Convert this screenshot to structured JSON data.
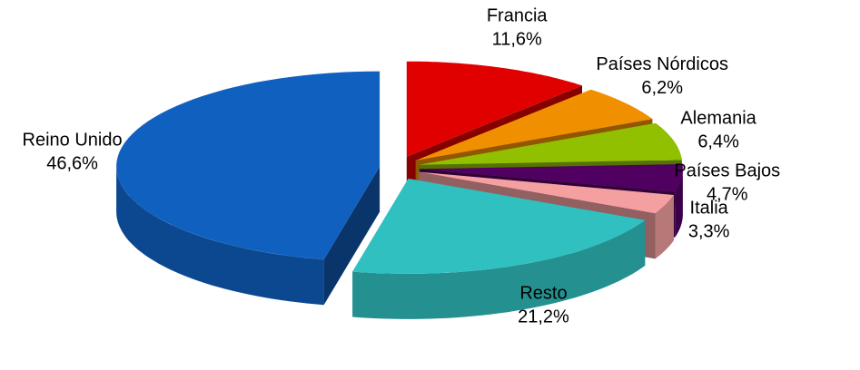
{
  "chart_data": {
    "type": "pie",
    "categories": [
      "Francia",
      "Países Nórdicos",
      "Alemania",
      "Países Bajos",
      "Italia",
      "Resto",
      "Reino Unido"
    ],
    "values": [
      11.6,
      6.2,
      6.4,
      4.7,
      3.3,
      21.2,
      46.6
    ],
    "value_labels": [
      "11,6%",
      "6,2%",
      "6,4%",
      "4,7%",
      "3,3%",
      "21,2%",
      "46,6%"
    ],
    "colors": [
      "#e00000",
      "#f09000",
      "#90c000",
      "#500060",
      "#f4a0a0",
      "#30c0c0",
      "#1060c0"
    ]
  }
}
